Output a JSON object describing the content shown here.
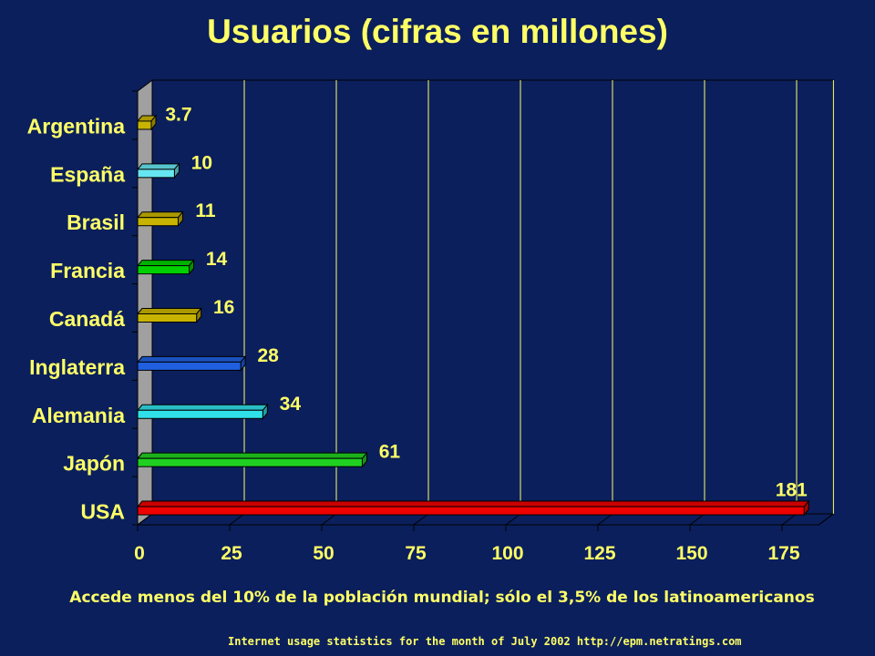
{
  "title": "Usuarios (cifras en millones)",
  "footer_note": "Accede menos del 10% de la población mundial; sólo el 3,5% de los latinoamericanos",
  "source_note": "Internet usage statistics for the month of July 2002 http://epm.netratings.com",
  "colors": {
    "background": "#0b1f5c",
    "text": "#ffff66",
    "axis_tick_labels": "#ffff66",
    "category_labels": "#ffff66",
    "gridline": "#ffff66"
  },
  "chart_data": {
    "type": "bar",
    "orientation": "horizontal",
    "three_d": true,
    "title": "Usuarios (cifras en millones)",
    "xlabel": "",
    "ylabel": "",
    "xlim": [
      0,
      185
    ],
    "x_ticks": [
      0,
      25,
      50,
      75,
      100,
      125,
      150,
      175
    ],
    "grid": true,
    "legend": "none",
    "categories": [
      "Argentina",
      "España",
      "Brasil",
      "Francia",
      "Canadá",
      "Inglaterra",
      "Alemania",
      "Japón",
      "USA"
    ],
    "values": [
      3.7,
      10,
      11,
      14,
      16,
      28,
      34,
      61,
      181
    ],
    "data_labels": [
      "3.7",
      "10",
      "11",
      "14",
      "16",
      "28",
      "34",
      "61",
      "181"
    ],
    "bar_colors": [
      "#c8b400",
      "#66e6f0",
      "#c8b400",
      "#00d000",
      "#c8b400",
      "#1f5fe0",
      "#30e0e8",
      "#20d020",
      "#ee0000"
    ]
  }
}
